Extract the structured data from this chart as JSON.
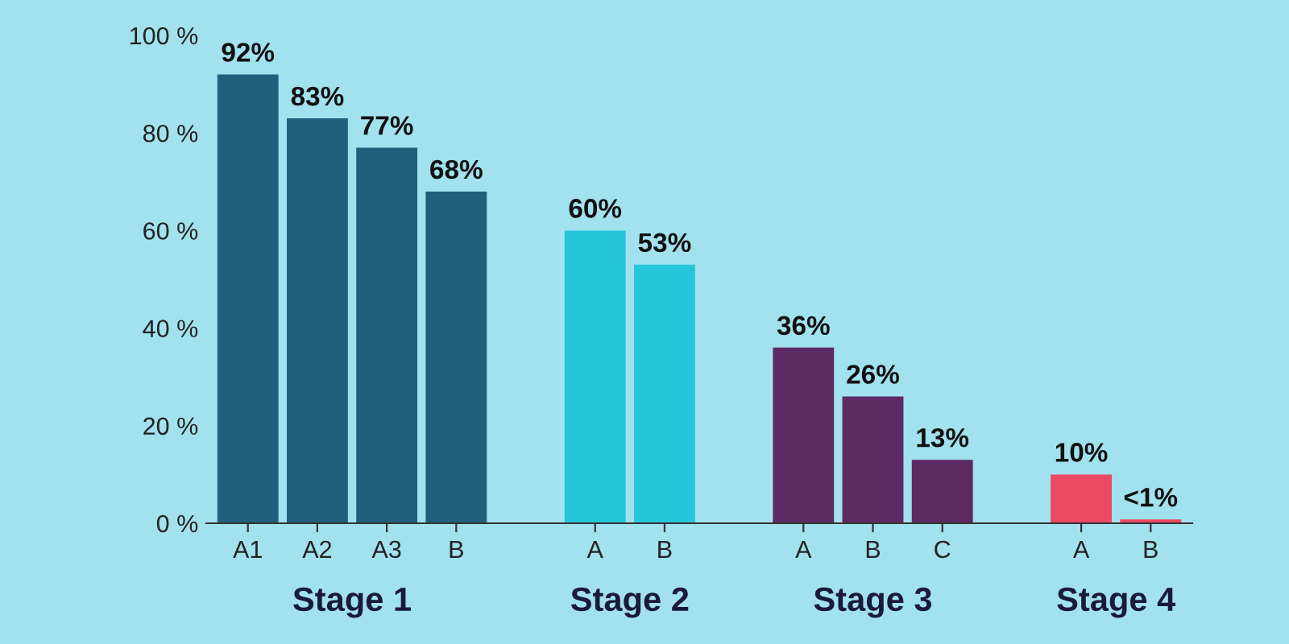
{
  "chart_data": {
    "type": "bar",
    "categories": [
      "A1",
      "A2",
      "A3",
      "B",
      null,
      "A",
      "B",
      null,
      "A",
      "B",
      "C",
      null,
      "A",
      "B"
    ],
    "values": [
      92,
      83,
      77,
      68,
      null,
      60,
      53,
      null,
      36,
      26,
      13,
      null,
      10,
      0.8
    ],
    "colors": [
      "#21607a",
      "#21607a",
      "#21607a",
      "#21607a",
      "#21607a",
      "#26c6da",
      "#26c6da",
      "#5e2a63",
      "#5e2a63",
      "#5e2a63",
      "#5e2a63",
      "#ec4a62",
      "#ec4a62",
      "#ec4a62"
    ],
    "value_labels": [
      "92%",
      "83%",
      "77%",
      "68%",
      null,
      "60%",
      "53%",
      null,
      "36%",
      "26%",
      "13%",
      null,
      "10%",
      "<1%"
    ],
    "annotations": [
      "Stage 1",
      "Stage 2",
      "Stage 3",
      "Stage 4"
    ],
    "ylim": [
      0,
      100
    ],
    "yticks": [
      {
        "value": 0,
        "label": "0 %"
      },
      {
        "value": 20,
        "label": "20 %"
      },
      {
        "value": 40,
        "label": "40 %"
      },
      {
        "value": 60,
        "label": "60 %"
      },
      {
        "value": 80,
        "label": "80 %"
      },
      {
        "value": 100,
        "label": "100 %"
      }
    ],
    "grid": false,
    "legend": false
  }
}
